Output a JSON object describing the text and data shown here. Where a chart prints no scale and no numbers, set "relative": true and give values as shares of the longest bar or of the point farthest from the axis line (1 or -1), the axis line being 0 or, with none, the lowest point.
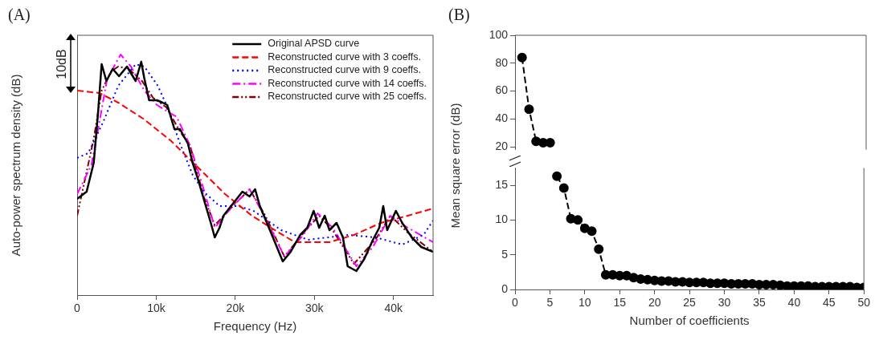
{
  "chart_data": [
    {
      "type": "line",
      "title": "(A)",
      "xlabel": "Frequency (Hz)",
      "ylabel": "Auto-power spectrum density (dB)",
      "relative": true,
      "xlim": [
        0,
        45000
      ],
      "xticks": [
        0,
        {
          "value": 10000,
          "label": "10k"
        },
        {
          "value": 20000,
          "label": "20k"
        },
        {
          "value": 30000,
          "label": "30k"
        },
        {
          "value": 40000,
          "label": "40k"
        }
      ],
      "legend": "top right",
      "annotations": [
        "10dB"
      ],
      "series": [
        {
          "name": "Original APSD curve",
          "color": "#000000",
          "line_style": "solid",
          "x": [
            0,
            1200,
            2100,
            2600,
            3100,
            3700,
            4500,
            5300,
            6300,
            7400,
            8100,
            8500,
            9100,
            10100,
            10800,
            11400,
            12300,
            13000,
            14000,
            14600,
            15200,
            16000,
            16900,
            17400,
            18000,
            18500,
            19700,
            20900,
            21800,
            22500,
            23100,
            24500,
            26000,
            27000,
            28200,
            29100,
            29900,
            30600,
            31300,
            31900,
            32800,
            33600,
            34200,
            35300,
            36300,
            37400,
            38200,
            38700,
            39200,
            40300,
            41100,
            42300,
            43500,
            45000
          ],
          "values": [
            0.4,
            0.43,
            0.55,
            0.74,
            0.96,
            0.89,
            0.94,
            0.91,
            0.95,
            0.89,
            0.97,
            0.9,
            0.81,
            0.81,
            0.8,
            0.79,
            0.69,
            0.69,
            0.63,
            0.55,
            0.49,
            0.4,
            0.3,
            0.24,
            0.28,
            0.33,
            0.38,
            0.43,
            0.41,
            0.44,
            0.37,
            0.26,
            0.14,
            0.18,
            0.25,
            0.28,
            0.35,
            0.28,
            0.33,
            0.27,
            0.3,
            0.24,
            0.12,
            0.1,
            0.15,
            0.23,
            0.28,
            0.37,
            0.27,
            0.35,
            0.3,
            0.24,
            0.2,
            0.18
          ]
        },
        {
          "name": "Reconstructed curve with 3 coeffs.",
          "color": "#ff0000",
          "line_style": "dashed",
          "x": [
            0,
            2800,
            5200,
            8500,
            11900,
            15300,
            18700,
            22100,
            24500,
            27500,
            31900,
            35000,
            38400,
            41800,
            45000
          ],
          "values": [
            0.85,
            0.84,
            0.8,
            0.73,
            0.64,
            0.53,
            0.42,
            0.33,
            0.28,
            0.22,
            0.22,
            0.25,
            0.3,
            0.33,
            0.36
          ]
        },
        {
          "name": "Reconstructed curve with 9 coeffs.",
          "color": "#0000ff",
          "line_style": "dotted",
          "x": [
            0,
            1400,
            3300,
            5200,
            7400,
            8500,
            10200,
            11300,
            13000,
            14600,
            16000,
            18000,
            20400,
            22300,
            25800,
            29200,
            34300,
            37700,
            41100,
            43800,
            45000
          ],
          "values": [
            0.57,
            0.59,
            0.72,
            0.87,
            0.96,
            0.95,
            0.87,
            0.79,
            0.63,
            0.5,
            0.43,
            0.37,
            0.37,
            0.35,
            0.27,
            0.23,
            0.25,
            0.24,
            0.21,
            0.25,
            0.31
          ]
        },
        {
          "name": "Reconstructed curve with 14 coeffs.",
          "color": "#ff00ff",
          "line_style": "dashdot",
          "x": [
            0,
            1800,
            2600,
            3800,
            5500,
            6800,
            8500,
            10100,
            12600,
            14300,
            16000,
            17400,
            19400,
            21800,
            23800,
            26200,
            28600,
            30400,
            32300,
            35300,
            37400,
            39600,
            41800,
            45000
          ],
          "values": [
            0.42,
            0.54,
            0.68,
            0.9,
            1.0,
            0.95,
            0.85,
            0.79,
            0.74,
            0.62,
            0.44,
            0.28,
            0.36,
            0.44,
            0.32,
            0.16,
            0.25,
            0.34,
            0.28,
            0.12,
            0.2,
            0.33,
            0.28,
            0.22
          ]
        },
        {
          "name": "Reconstructed curve with 25 coeffs.",
          "color": "#800000",
          "line_style": "dashdotdot",
          "x": [
            0,
            2100,
            3100,
            4300,
            5200,
            6500,
            8200,
            9600,
            11300,
            13000,
            14300,
            16000,
            17400,
            19400,
            21800,
            23800,
            26200,
            28900,
            30600,
            32300,
            35000,
            37700,
            39600,
            41800,
            45000
          ],
          "values": [
            0.33,
            0.65,
            0.85,
            0.93,
            0.95,
            0.94,
            0.89,
            0.82,
            0.78,
            0.68,
            0.62,
            0.41,
            0.29,
            0.36,
            0.44,
            0.33,
            0.16,
            0.27,
            0.33,
            0.27,
            0.13,
            0.23,
            0.33,
            0.26,
            0.18
          ]
        }
      ]
    },
    {
      "type": "line",
      "title": "(B)",
      "x": [
        1,
        2,
        3,
        4,
        5
      ],
      "xlim": [
        0,
        50
      ],
      "ylim": [
        18,
        100
      ],
      "yticks": [
        20,
        40,
        60,
        80,
        100
      ],
      "tick_labels": "y",
      "marker": "circle",
      "line_style": "dashed",
      "series": [
        {
          "color": "#000000",
          "values": [
            84,
            47,
            24,
            23,
            23
          ]
        }
      ]
    },
    {
      "type": "line",
      "xlabel": "Number of coefficients",
      "ylabel": "Mean square error (dB)",
      "x": [
        6,
        7,
        8,
        9,
        10,
        11,
        12,
        13,
        14,
        15,
        16,
        17,
        18,
        19,
        20,
        21,
        22,
        23,
        24,
        25,
        26,
        27,
        28,
        29,
        30,
        31,
        32,
        33,
        34,
        35,
        36,
        37,
        38,
        39,
        40,
        41,
        42,
        43,
        44,
        45,
        46,
        47,
        48,
        49,
        50
      ],
      "xlim": [
        0,
        50
      ],
      "xticks": [
        0,
        5,
        10,
        15,
        20,
        25,
        30,
        35,
        40,
        45,
        50
      ],
      "ylim": [
        0,
        17.5
      ],
      "yticks": [
        0,
        5,
        10,
        15
      ],
      "marker": "circle",
      "line_style": "dashed",
      "series": [
        {
          "color": "#000000",
          "values": [
            16.3,
            14.6,
            10.2,
            10.0,
            8.8,
            8.4,
            5.8,
            2.1,
            2.1,
            2.0,
            2.0,
            1.7,
            1.5,
            1.4,
            1.3,
            1.2,
            1.2,
            1.1,
            1.1,
            1.0,
            1.0,
            1.0,
            0.9,
            0.9,
            0.9,
            0.8,
            0.8,
            0.8,
            0.8,
            0.7,
            0.7,
            0.7,
            0.6,
            0.5,
            0.5,
            0.5,
            0.5,
            0.4,
            0.4,
            0.4,
            0.4,
            0.4,
            0.4,
            0.3,
            0.3
          ]
        }
      ]
    }
  ]
}
